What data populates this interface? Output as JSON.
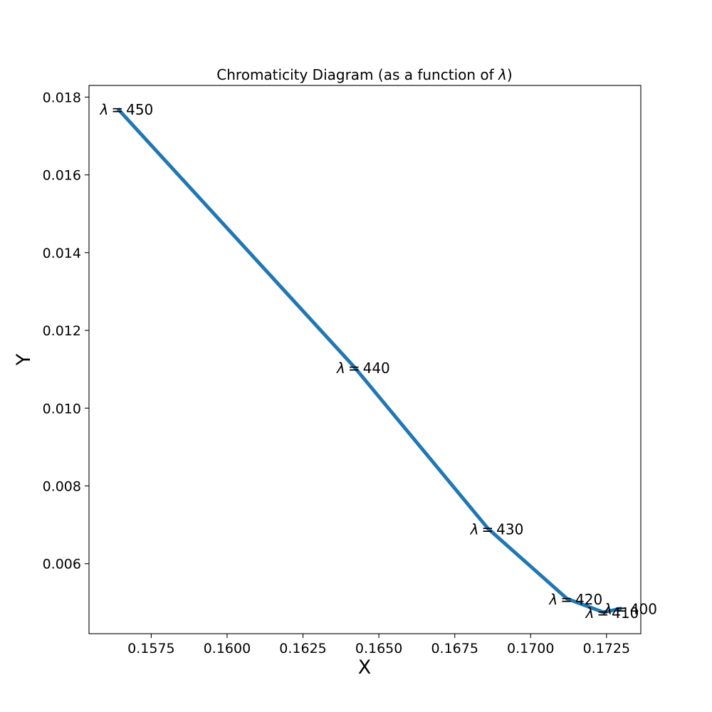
{
  "chart_data": {
    "type": "line",
    "title_prefix": "Chromaticity Diagram (as a function of ",
    "title_symbol": "λ",
    "title_suffix": ")",
    "xlabel": "X",
    "ylabel": "Y",
    "xlim": [
      0.15545,
      0.17363
    ],
    "ylim": [
      0.0042,
      0.0183
    ],
    "x_ticks": [
      0.1575,
      0.16,
      0.1625,
      0.165,
      0.1675,
      0.17,
      0.1725
    ],
    "x_tick_labels": [
      "0.1575",
      "0.1600",
      "0.1625",
      "0.1650",
      "0.1675",
      "0.1700",
      "0.1725"
    ],
    "y_ticks": [
      0.006,
      0.008,
      0.01,
      0.012,
      0.014,
      0.016,
      0.018
    ],
    "y_tick_labels": [
      "0.006",
      "0.008",
      "0.010",
      "0.012",
      "0.014",
      "0.016",
      "0.018"
    ],
    "series": [
      {
        "color": "#1f77b4",
        "x": [
          0.173,
          0.1724,
          0.1712,
          0.1686,
          0.1642,
          0.1564
        ],
        "y": [
          0.00485,
          0.00475,
          0.0051,
          0.0069,
          0.01105,
          0.0177
        ]
      }
    ],
    "annotations": [
      {
        "symbol": "λ",
        "eq": "=",
        "value": "400",
        "x": 0.173,
        "y": 0.00485
      },
      {
        "symbol": "λ",
        "eq": "=",
        "value": "410",
        "x": 0.1724,
        "y": 0.00475
      },
      {
        "symbol": "λ",
        "eq": "=",
        "value": "420",
        "x": 0.1712,
        "y": 0.0051
      },
      {
        "symbol": "λ",
        "eq": "=",
        "value": "430",
        "x": 0.1686,
        "y": 0.0069
      },
      {
        "symbol": "λ",
        "eq": "=",
        "value": "440",
        "x": 0.1642,
        "y": 0.01105
      },
      {
        "symbol": "λ",
        "eq": "=",
        "value": "450",
        "x": 0.1564,
        "y": 0.0177
      }
    ],
    "grid": false
  }
}
